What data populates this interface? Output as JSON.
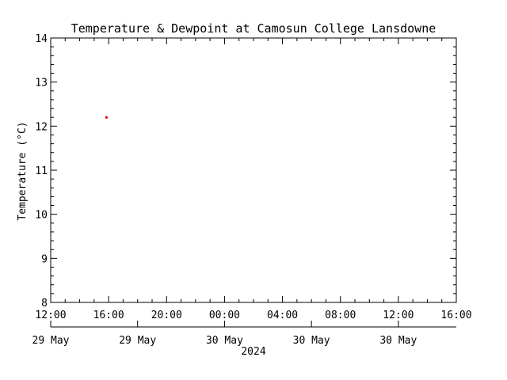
{
  "chart_data": {
    "type": "scatter",
    "title": "Temperature & Dewpoint at Camosun College Lansdowne",
    "ylabel": "Temperature (°C)",
    "xlabel": "2024",
    "ylim": [
      8,
      14
    ],
    "yticks": [
      "8",
      "9",
      "10",
      "11",
      "12",
      "13",
      "14"
    ],
    "xlim_hours": [
      0,
      28
    ],
    "xticks": [
      "12:00",
      "16:00",
      "20:00",
      "00:00",
      "04:00",
      "08:00",
      "12:00",
      "16:00"
    ],
    "date_labels": [
      "29 May",
      "29 May",
      "30 May",
      "30 May",
      "30 May"
    ],
    "grid": false,
    "series": [
      {
        "color": "#ff0000",
        "x_hours": [
          3.85
        ],
        "values": [
          12.2
        ]
      }
    ]
  }
}
